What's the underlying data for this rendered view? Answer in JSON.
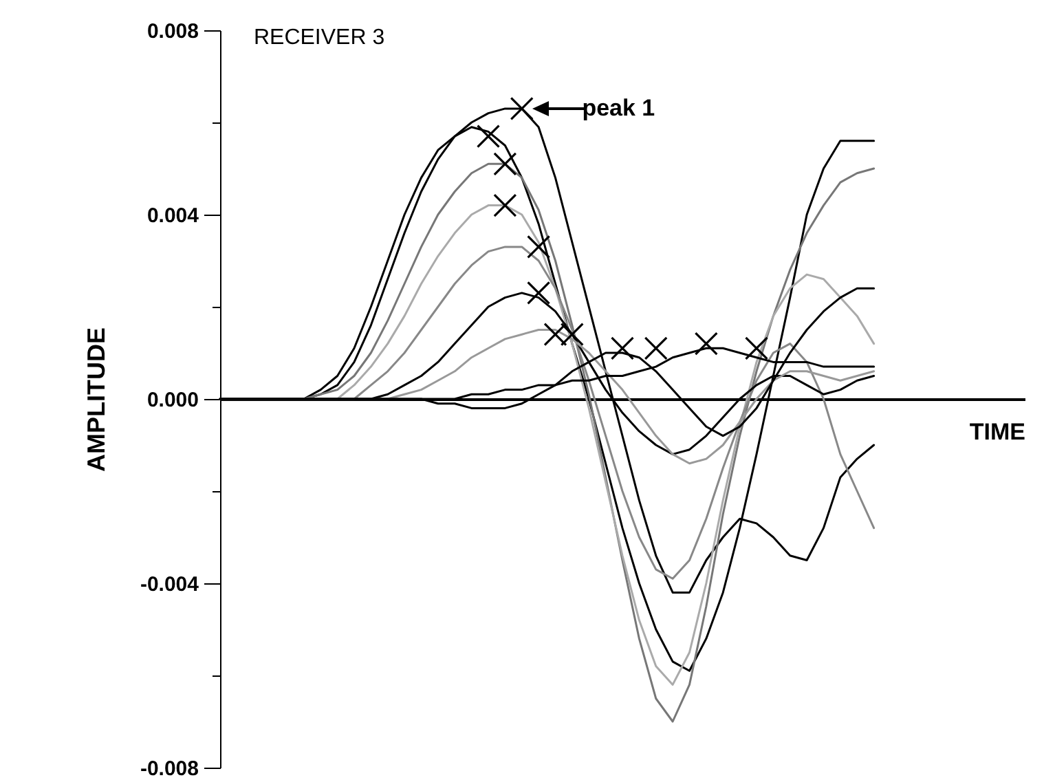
{
  "chart_data": {
    "type": "line",
    "title": "RECEIVER 3",
    "xlabel": "TIME",
    "ylabel": "AMPLITUDE",
    "categories": [
      null,
      null,
      null,
      null,
      null,
      null,
      null,
      null,
      null,
      null,
      null,
      null,
      null,
      null,
      null,
      null,
      null,
      null,
      null,
      null,
      null,
      null,
      null,
      null,
      null,
      null,
      null,
      null,
      null,
      null,
      null,
      null,
      null,
      null,
      null,
      null,
      null,
      null,
      null,
      null,
      null,
      null,
      null,
      null,
      null,
      null,
      null,
      null,
      null
    ],
    "series": [
      {
        "color": "#000000",
        "values": [
          0,
          0,
          0,
          0,
          0,
          0,
          0.0001,
          0.0003,
          0.0008,
          0.0016,
          0.0026,
          0.0036,
          0.0045,
          0.0052,
          0.0057,
          0.006,
          0.0062,
          0.0063,
          0.0063,
          0.0059,
          0.0048,
          0.0034,
          0.002,
          0.0006,
          -0.0008,
          -0.0022,
          -0.0034,
          -0.0042,
          -0.0042,
          -0.0035,
          -0.003,
          -0.0026,
          -0.0027,
          -0.003,
          -0.0034,
          -0.0035,
          -0.0028,
          -0.0017,
          -0.0013,
          -0.001,
          null,
          null,
          null,
          null,
          null,
          null,
          null,
          null,
          null
        ]
      },
      {
        "color": "#000000",
        "values": [
          0,
          0,
          0,
          0,
          0,
          0,
          0.0002,
          0.0005,
          0.0011,
          0.002,
          0.003,
          0.004,
          0.0048,
          0.0054,
          0.0057,
          0.0059,
          0.0058,
          0.0055,
          0.0048,
          0.0038,
          0.0025,
          0.0012,
          0,
          -0.0014,
          -0.0028,
          -0.004,
          -0.005,
          -0.0057,
          -0.0059,
          -0.0052,
          -0.0042,
          -0.0028,
          -0.0012,
          0.0005,
          0.0022,
          0.004,
          0.005,
          0.0056,
          0.0056,
          0.0056,
          null,
          null,
          null,
          null,
          null,
          null,
          null,
          null,
          null
        ]
      },
      {
        "color": "#777777",
        "values": [
          0,
          0,
          0,
          0,
          0,
          0,
          0.0001,
          0.0002,
          0.0005,
          0.001,
          0.0017,
          0.0025,
          0.0033,
          0.004,
          0.0045,
          0.0049,
          0.0051,
          0.0051,
          0.0048,
          0.0041,
          0.003,
          0.0016,
          0.0001,
          -0.0017,
          -0.0035,
          -0.0052,
          -0.0065,
          -0.007,
          -0.0062,
          -0.0045,
          -0.0025,
          -0.0008,
          0.0006,
          0.0018,
          0.0028,
          0.0036,
          0.0042,
          0.0047,
          0.0049,
          0.005,
          null,
          null,
          null,
          null,
          null,
          null,
          null,
          null,
          null
        ]
      },
      {
        "color": "#aaaaaa",
        "values": [
          0,
          0,
          0,
          0,
          0,
          0,
          0,
          0,
          0.0003,
          0.0007,
          0.0012,
          0.0018,
          0.0025,
          0.0031,
          0.0036,
          0.004,
          0.0042,
          0.0042,
          0.004,
          0.0034,
          0.0024,
          0.0012,
          -0.0002,
          -0.0018,
          -0.0034,
          -0.0048,
          -0.0058,
          -0.0062,
          -0.0055,
          -0.004,
          -0.0022,
          -0.0006,
          0.0008,
          0.0018,
          0.0024,
          0.0027,
          0.0026,
          0.0022,
          0.0018,
          0.0012,
          null,
          null,
          null,
          null,
          null,
          null,
          null,
          null,
          null
        ]
      },
      {
        "color": "#888888",
        "values": [
          0,
          0,
          0,
          0,
          0,
          0,
          0,
          0,
          0,
          0.0003,
          0.0006,
          0.001,
          0.0015,
          0.002,
          0.0025,
          0.0029,
          0.0032,
          0.0033,
          0.0033,
          0.003,
          0.0024,
          0.0015,
          0.0004,
          -0.0008,
          -0.002,
          -0.003,
          -0.0037,
          -0.0039,
          -0.0035,
          -0.0026,
          -0.0015,
          -0.0005,
          0.0004,
          0.001,
          0.0012,
          0.0008,
          0,
          -0.0012,
          -0.002,
          -0.0028,
          null,
          null,
          null,
          null,
          null,
          null,
          null,
          null,
          null
        ]
      },
      {
        "color": "#000000",
        "values": [
          0,
          0,
          0,
          0,
          0,
          0,
          0,
          0,
          0,
          0,
          0.0001,
          0.0003,
          0.0005,
          0.0008,
          0.0012,
          0.0016,
          0.002,
          0.0022,
          0.0023,
          0.0022,
          0.0019,
          0.0014,
          0.0008,
          0.0002,
          -0.0003,
          -0.0007,
          -0.001,
          -0.0012,
          -0.0011,
          -0.0008,
          -0.0004,
          0,
          0.0003,
          0.0005,
          0.0005,
          0.0003,
          0.0001,
          0.0002,
          0.0004,
          0.0005,
          null,
          null,
          null,
          null,
          null,
          null,
          null,
          null,
          null
        ]
      },
      {
        "color": "#999999",
        "values": [
          0,
          0,
          0,
          0,
          0,
          0,
          0,
          0,
          0,
          0,
          0,
          0.0001,
          0.0002,
          0.0004,
          0.0006,
          0.0009,
          0.0011,
          0.0013,
          0.0014,
          0.0015,
          0.0015,
          0.0013,
          0.001,
          0.0006,
          0.0002,
          -0.0003,
          -0.0008,
          -0.0012,
          -0.0014,
          -0.0013,
          -0.001,
          -0.0005,
          0,
          0.0004,
          0.0006,
          0.0006,
          0.0005,
          0.0004,
          0.0005,
          0.0006,
          null,
          null,
          null,
          null,
          null,
          null,
          null,
          null,
          null
        ]
      },
      {
        "color": "#000000",
        "values": [
          0,
          0,
          0,
          0,
          0,
          0,
          0,
          0,
          0,
          0,
          0,
          0,
          0,
          -0.0001,
          -0.0001,
          -0.0002,
          -0.0002,
          -0.0002,
          -0.0001,
          0.0001,
          0.0003,
          0.0006,
          0.0008,
          0.001,
          0.001,
          0.0009,
          0.0006,
          0.0002,
          -0.0002,
          -0.0006,
          -0.0008,
          -0.0006,
          -0.0002,
          0.0004,
          0.001,
          0.0015,
          0.0019,
          0.0022,
          0.0024,
          0.0024,
          null,
          null,
          null,
          null,
          null,
          null,
          null,
          null,
          null
        ]
      },
      {
        "color": "#000000",
        "values": [
          0,
          0,
          0,
          0,
          0,
          0,
          0,
          0,
          0,
          0,
          0,
          0,
          0,
          0,
          0,
          0.0001,
          0.0001,
          0.0002,
          0.0002,
          0.0003,
          0.0003,
          0.0004,
          0.0004,
          0.0005,
          0.0005,
          0.0006,
          0.0007,
          0.0009,
          0.001,
          0.0011,
          0.0011,
          0.001,
          0.0009,
          0.0008,
          0.0008,
          0.0008,
          0.0007,
          0.0007,
          0.0007,
          0.0007,
          null,
          null,
          null,
          null,
          null,
          null,
          null,
          null,
          null
        ]
      },
      {
        "type": "scatter",
        "marker": "cross",
        "color": "#000000",
        "values": [
          null,
          null,
          null,
          null,
          null,
          null,
          null,
          null,
          null,
          null,
          null,
          null,
          null,
          null,
          null,
          null,
          0.0057,
          0.0051,
          0.0063,
          0.0033,
          0.0014,
          0.0014,
          null,
          null,
          0.0011,
          null,
          0.0011,
          null,
          null,
          0.0012,
          null,
          null,
          0.0011,
          null,
          null,
          null,
          null,
          null,
          null,
          null,
          null,
          null,
          null,
          null,
          null,
          null,
          null,
          null,
          null
        ]
      },
      {
        "type": "scatter",
        "marker": "cross",
        "color": "#000000",
        "values": [
          null,
          null,
          null,
          null,
          null,
          null,
          null,
          null,
          null,
          null,
          null,
          null,
          null,
          null,
          null,
          null,
          null,
          0.0042,
          null,
          0.0023,
          null,
          null,
          null,
          null,
          null,
          null,
          null,
          null,
          null,
          null,
          null,
          null,
          null,
          null,
          null,
          null,
          null,
          null,
          null,
          null,
          null,
          null,
          null,
          null,
          null,
          null,
          null,
          null,
          null
        ]
      }
    ],
    "ylim": [
      -0.008,
      0.008
    ],
    "yticks": [
      -0.008,
      {
        "value": -0.006,
        "label": null
      },
      -0.004,
      {
        "value": -0.002,
        "label": null
      },
      {
        "value": 0,
        "label": "0.000"
      },
      {
        "value": 0.002,
        "label": null
      },
      0.004,
      {
        "value": 0.006,
        "label": null
      },
      0.008
    ],
    "annotations": [
      "peak 1"
    ],
    "tick_labels": "y"
  }
}
